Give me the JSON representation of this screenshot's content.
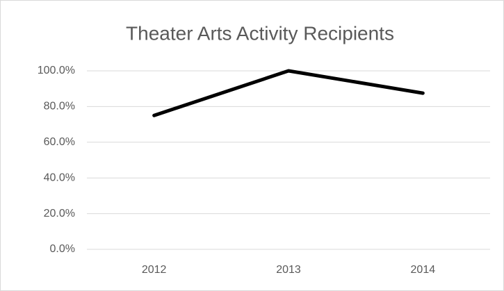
{
  "chart_data": {
    "type": "line",
    "title": "Theater Arts Activity Recipients",
    "categories": [
      "2012",
      "2013",
      "2014"
    ],
    "series": [
      {
        "values": [
          75,
          100,
          87.5
        ],
        "color": "#000000"
      }
    ],
    "ylim": [
      0,
      100
    ],
    "yticks": [
      {
        "value": 0,
        "label": "0.0%"
      },
      {
        "value": 20,
        "label": "20.0%"
      },
      {
        "value": 40,
        "label": "40.0%"
      },
      {
        "value": 60,
        "label": "60.0%"
      },
      {
        "value": 80,
        "label": "80.0%"
      },
      {
        "value": 100,
        "label": "100.0%"
      }
    ],
    "grid": true
  }
}
